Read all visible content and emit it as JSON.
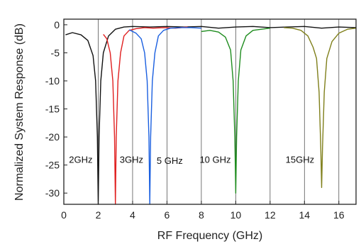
{
  "chart_data": {
    "type": "line",
    "xlabel": "RF Frequency (GHz)",
    "ylabel": "Normalized System Response (dB)",
    "xlim": [
      0,
      17
    ],
    "ylim": [
      -32,
      1
    ],
    "xticks": [
      0,
      2,
      4,
      6,
      8,
      10,
      12,
      14,
      16
    ],
    "yticks": [
      0,
      -5,
      -10,
      -15,
      -20,
      -25,
      -30
    ],
    "grid": "vertical",
    "series": [
      {
        "color": "#111111",
        "x": [
          0.1,
          0.5,
          1.0,
          1.4,
          1.7,
          1.85,
          1.95,
          2.0,
          2.05,
          2.15,
          2.3,
          2.6,
          3.0,
          3.5,
          4.0,
          5.0,
          6.0,
          7.0,
          8.0,
          9.0,
          10.0,
          11.0,
          12.0,
          13.0,
          14.0,
          15.0,
          16.0,
          17.0
        ],
        "y": [
          -1.8,
          -1.4,
          -1.8,
          -2.8,
          -5.5,
          -10,
          -20,
          -32,
          -20,
          -10,
          -5,
          -2,
          -0.8,
          -0.4,
          -0.3,
          -0.4,
          -0.3,
          -0.4,
          -0.3,
          -0.6,
          -0.4,
          -0.3,
          -0.5,
          -0.4,
          -0.3,
          -0.6,
          -0.4,
          -0.5
        ]
      },
      {
        "color": "#e02020",
        "x": [
          2.3,
          2.5,
          2.7,
          2.85,
          2.95,
          3.0,
          3.05,
          3.15,
          3.3,
          3.5,
          3.8,
          4.2,
          4.7,
          5.2,
          5.8,
          6.5,
          7.2
        ],
        "y": [
          -1.7,
          -2.5,
          -5,
          -10,
          -20,
          -32,
          -20,
          -10,
          -5,
          -2,
          -1,
          -0.7,
          -0.5,
          -0.6,
          -0.5,
          -0.6,
          -0.4
        ]
      },
      {
        "color": "#1a5fe0",
        "x": [
          3.8,
          4.2,
          4.5,
          4.7,
          4.85,
          4.95,
          5.0,
          5.05,
          5.15,
          5.3,
          5.5,
          5.8,
          6.2,
          6.8,
          7.4,
          8.0
        ],
        "y": [
          -0.9,
          -1.5,
          -2.5,
          -5,
          -10,
          -20,
          -32,
          -20,
          -10,
          -5,
          -2,
          -1,
          -0.6,
          -0.5,
          -0.5,
          -0.6
        ]
      },
      {
        "color": "#1e8c1e",
        "x": [
          8.0,
          8.5,
          9.0,
          9.4,
          9.7,
          9.85,
          9.95,
          10.0,
          10.05,
          10.15,
          10.3,
          10.6,
          11.0,
          11.5,
          12.0
        ],
        "y": [
          -1.2,
          -1.0,
          -1.3,
          -2.2,
          -4.5,
          -10,
          -20,
          -30,
          -20,
          -10,
          -4.5,
          -2,
          -1,
          -0.8,
          -0.6
        ]
      },
      {
        "color": "#7f7f1a",
        "x": [
          12.8,
          13.3,
          13.8,
          14.2,
          14.5,
          14.7,
          14.85,
          14.95,
          15.0,
          15.05,
          15.15,
          15.3,
          15.6,
          16.0,
          16.5,
          17.0
        ],
        "y": [
          -0.5,
          -0.6,
          -1.0,
          -2.0,
          -4,
          -6,
          -12,
          -22,
          -29,
          -22,
          -12,
          -6,
          -3,
          -1.5,
          -0.8,
          -0.6
        ]
      }
    ],
    "annotations": [
      {
        "text": "2GHz",
        "x": 0.3,
        "y": -24.6
      },
      {
        "text": "3GHz",
        "x": 3.25,
        "y": -24.6
      },
      {
        "text": "5 GHz",
        "x": 5.4,
        "y": -24.8
      },
      {
        "text": "10 GHz",
        "x": 7.9,
        "y": -24.6
      },
      {
        "text": "15GHz",
        "x": 12.9,
        "y": -24.6
      }
    ]
  }
}
